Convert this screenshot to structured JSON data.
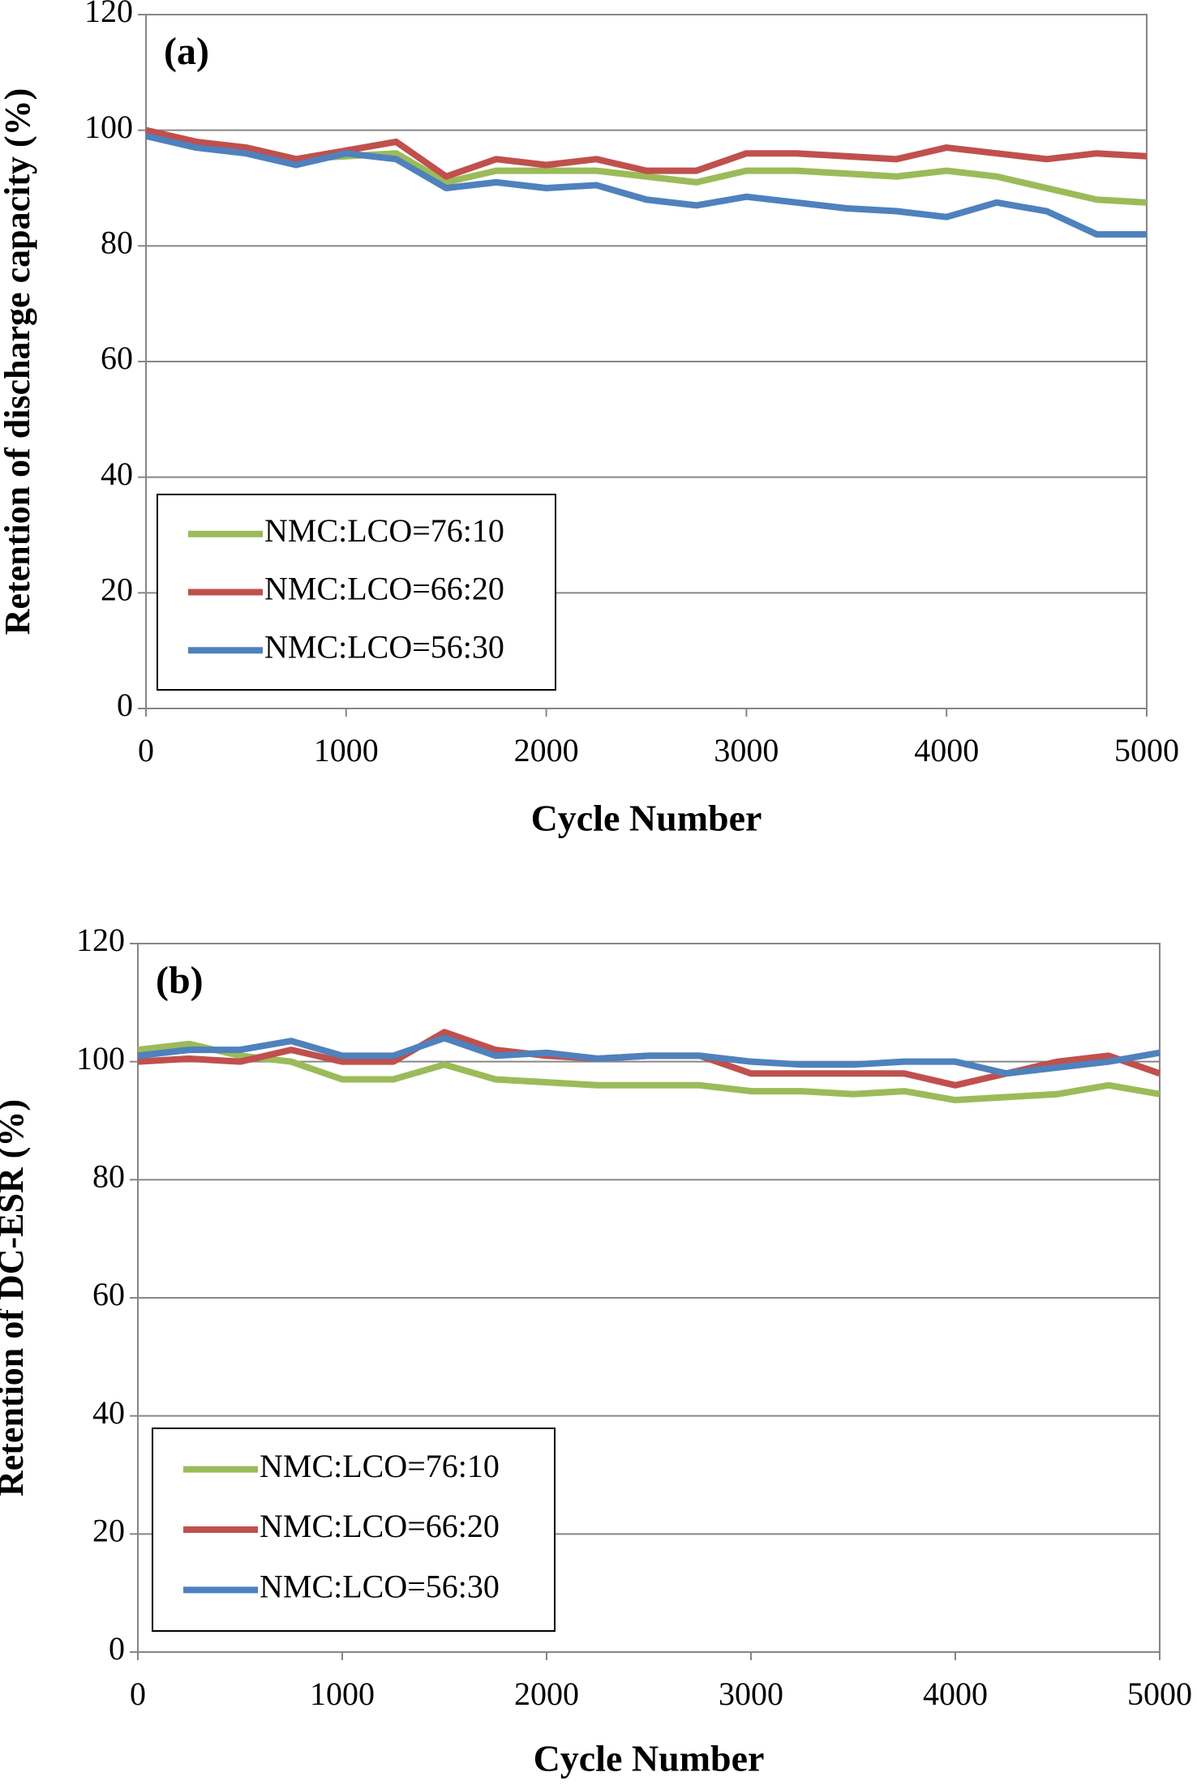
{
  "chart_data": [
    {
      "type": "line",
      "annotation": "(a)",
      "y_label": "Retention of  discharge capacity (%)",
      "x_label": "Cycle Number",
      "x": [
        0,
        250,
        500,
        750,
        1000,
        1250,
        1500,
        1750,
        2000,
        2250,
        2500,
        2750,
        3000,
        3250,
        3500,
        3750,
        4000,
        4250,
        4500,
        4750,
        5000
      ],
      "series": [
        {
          "name": "NMC:LCO=76:10",
          "color": "#9bbb59",
          "values": [
            100,
            98,
            97,
            95,
            95.5,
            96,
            91,
            93,
            93,
            93,
            92,
            91,
            93,
            93,
            92.5,
            92,
            93,
            92,
            90,
            88,
            87.5
          ]
        },
        {
          "name": "NMC:LCO=66:20",
          "color": "#c0504d",
          "values": [
            100,
            98,
            97,
            95,
            96.5,
            98,
            92,
            95,
            94,
            95,
            93,
            93,
            96,
            96,
            95.5,
            95,
            97,
            96,
            95,
            96,
            95.5
          ]
        },
        {
          "name": "NMC:LCO=56:30",
          "color": "#4f81bd",
          "values": [
            99,
            97,
            96,
            94,
            96,
            95,
            90,
            91,
            90,
            90.5,
            88,
            87,
            88.5,
            87.5,
            86.5,
            86,
            85,
            87.5,
            86,
            82,
            82
          ]
        }
      ],
      "xlim": [
        0,
        5000
      ],
      "ylim": [
        0,
        120
      ],
      "xticks": [
        0,
        1000,
        2000,
        3000,
        4000,
        5000
      ],
      "yticks": [
        0,
        20,
        40,
        60,
        80,
        100,
        120
      ],
      "grid": true,
      "legend": "lower left"
    },
    {
      "type": "line",
      "annotation": "(b)",
      "y_label": "Retention of DC-ESR (%)",
      "x_label": "Cycle Number",
      "x": [
        0,
        250,
        500,
        750,
        1000,
        1250,
        1500,
        1750,
        2000,
        2250,
        2500,
        2750,
        3000,
        3250,
        3500,
        3750,
        4000,
        4250,
        4500,
        4750,
        5000
      ],
      "series": [
        {
          "name": "NMC:LCO=76:10",
          "color": "#9bbb59",
          "values": [
            102,
            103,
            101,
            100,
            97,
            97,
            99.5,
            97,
            96.5,
            96,
            96,
            96,
            95,
            95,
            94.5,
            95,
            93.5,
            94,
            94.5,
            96,
            94.5
          ]
        },
        {
          "name": "NMC:LCO=66:20",
          "color": "#c0504d",
          "values": [
            100,
            100.5,
            100,
            102,
            100,
            100,
            105,
            102,
            101,
            100.5,
            101,
            101,
            98,
            98,
            98,
            98,
            96,
            98,
            100,
            101,
            98
          ]
        },
        {
          "name": "NMC:LCO=56:30",
          "color": "#4f81bd",
          "values": [
            101,
            102,
            102,
            103.5,
            101,
            101,
            104,
            101,
            101.5,
            100.5,
            101,
            101,
            100,
            99.5,
            99.5,
            100,
            100,
            98,
            99,
            100,
            101.5
          ]
        }
      ],
      "xlim": [
        0,
        5000
      ],
      "ylim": [
        0,
        120
      ],
      "xticks": [
        0,
        1000,
        2000,
        3000,
        4000,
        5000
      ],
      "yticks": [
        0,
        20,
        40,
        60,
        80,
        100,
        120
      ],
      "grid": true,
      "legend": "lower left"
    }
  ]
}
